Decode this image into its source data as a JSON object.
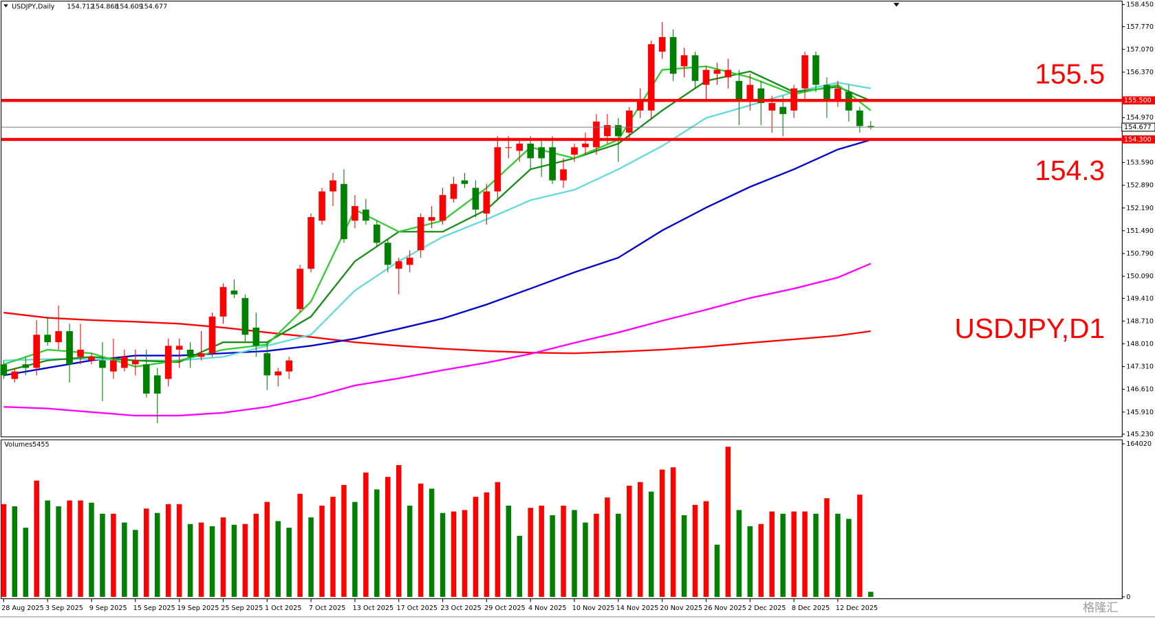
{
  "chart_data": [
    {
      "type": "candlestick",
      "title": "USDJPY,Daily",
      "categories": [
        "28 Aug 2025",
        null,
        null,
        null,
        "3 Sep 2025",
        null,
        null,
        null,
        "9 Sep 2025",
        null,
        null,
        null,
        "15 Sep 2025",
        null,
        null,
        null,
        "19 Sep 2025",
        null,
        null,
        null,
        "25 Sep 2025",
        null,
        null,
        null,
        "1 Oct 2025",
        null,
        null,
        null,
        "7 Oct 2025",
        null,
        null,
        null,
        "13 Oct 2025",
        null,
        null,
        null,
        "17 Oct 2025",
        null,
        null,
        null,
        "23 Oct 2025",
        null,
        null,
        null,
        "29 Oct 2025",
        null,
        null,
        null,
        "4 Nov 2025",
        null,
        null,
        null,
        "10 Nov 2025",
        null,
        null,
        null,
        "14 Nov 2025",
        null,
        null,
        null,
        "20 Nov 2025",
        null,
        null,
        null,
        "26 Nov 2025",
        null,
        null,
        null,
        "2 Dec 2025",
        null,
        null,
        null,
        "8 Dec 2025",
        null,
        null,
        null,
        "12 Dec 2025",
        null,
        null,
        null
      ],
      "open": [
        147.38,
        146.93,
        147.38,
        147.27,
        148.29,
        148.06,
        148.4,
        147.61,
        147.5,
        147.5,
        147.16,
        147.27,
        147.38,
        147.38,
        147.04,
        146.93,
        147.83,
        147.83,
        147.61,
        147.72,
        148.85,
        149.65,
        149.42,
        148.51,
        147.72,
        147.04,
        147.16,
        149.08,
        150.32,
        151.8,
        152.7,
        152.93,
        151.8,
        152.14,
        151.68,
        151.12,
        150.32,
        150.44,
        150.89,
        151.8,
        151.8,
        152.47,
        153.04,
        152.81,
        152.02,
        152.7,
        154.04,
        153.95,
        154.17,
        154.06,
        154.06,
        153.04,
        153.83,
        154.06,
        154.06,
        154.4,
        154.74,
        154.51,
        155.19,
        155.19,
        157.0,
        157.45,
        156.55,
        156.89,
        155.98,
        156.32,
        156.21,
        156.1,
        155.53,
        155.87,
        155.19,
        155.3,
        155.19,
        155.87,
        156.89,
        155.98,
        155.53,
        155.76,
        155.19,
        154.712
      ],
      "high": [
        147.5,
        147.27,
        147.61,
        148.74,
        148.85,
        149.19,
        148.63,
        148.63,
        147.72,
        148.06,
        148.17,
        147.83,
        147.83,
        147.83,
        147.27,
        148.17,
        148.17,
        148.06,
        148.4,
        148.97,
        149.87,
        149.99,
        149.53,
        148.97,
        148.06,
        147.27,
        147.61,
        150.44,
        152.02,
        152.81,
        153.27,
        153.38,
        152.59,
        152.47,
        151.8,
        151.23,
        150.66,
        150.89,
        152.02,
        152.25,
        152.81,
        153.15,
        153.27,
        153.04,
        152.93,
        154.4,
        154.4,
        154.29,
        154.4,
        154.29,
        154.4,
        153.72,
        154.17,
        154.51,
        155.08,
        155.08,
        154.96,
        155.3,
        155.87,
        157.34,
        157.91,
        157.68,
        157.12,
        157.0,
        156.55,
        156.66,
        156.78,
        156.44,
        156.32,
        156.1,
        155.64,
        155.64,
        155.98,
        157.0,
        157.0,
        156.21,
        156.1,
        155.98,
        155.3,
        154.868
      ],
      "low": [
        146.93,
        146.82,
        147.04,
        147.04,
        147.95,
        147.83,
        146.82,
        147.38,
        147.38,
        146.25,
        146.93,
        147.16,
        147.04,
        146.36,
        145.57,
        146.7,
        147.27,
        147.27,
        147.5,
        147.61,
        148.63,
        149.42,
        148.06,
        147.61,
        146.59,
        146.7,
        146.93,
        148.97,
        150.21,
        151.68,
        152.25,
        151.12,
        151.57,
        151.68,
        151.0,
        150.21,
        149.53,
        150.21,
        150.66,
        151.57,
        151.68,
        152.36,
        152.81,
        151.91,
        151.68,
        152.47,
        153.72,
        153.61,
        153.38,
        153.15,
        152.93,
        152.81,
        153.61,
        153.83,
        153.83,
        154.17,
        153.61,
        154.29,
        154.96,
        154.96,
        156.78,
        156.1,
        156.21,
        155.87,
        155.53,
        155.98,
        155.87,
        154.74,
        155.19,
        154.74,
        154.51,
        154.4,
        154.96,
        155.53,
        155.76,
        154.96,
        155.3,
        154.85,
        154.51,
        154.609
      ],
      "close": [
        147.04,
        147.16,
        147.27,
        148.29,
        148.06,
        148.4,
        147.38,
        147.83,
        147.61,
        147.27,
        147.5,
        147.61,
        147.5,
        146.48,
        146.48,
        147.95,
        147.95,
        147.61,
        147.72,
        148.85,
        149.76,
        149.53,
        148.29,
        147.95,
        147.04,
        147.16,
        147.5,
        150.32,
        151.91,
        152.7,
        153.04,
        151.23,
        152.25,
        151.8,
        151.12,
        150.44,
        150.55,
        150.66,
        151.91,
        151.91,
        152.59,
        152.93,
        152.93,
        152.14,
        152.7,
        154.06,
        154.06,
        154.17,
        153.72,
        153.72,
        153.04,
        153.38,
        154.06,
        154.17,
        154.85,
        154.74,
        154.4,
        155.19,
        155.53,
        157.23,
        157.45,
        156.32,
        156.89,
        156.1,
        156.44,
        156.44,
        156.44,
        155.53,
        155.98,
        155.42,
        155.42,
        155.08,
        155.87,
        156.89,
        155.98,
        155.53,
        155.87,
        155.19,
        154.71,
        154.677
      ],
      "up_color": "#ff0000",
      "down_color": "#008000",
      "ylim": [
        145.16,
        158.59
      ],
      "yticks": [
        {
          "value": 158.45,
          "label": "158.450"
        },
        {
          "value": 157.77,
          "label": "157.770"
        },
        {
          "value": 157.07,
          "label": "157.070"
        },
        {
          "value": 156.37,
          "label": "156.370"
        },
        {
          "value": 154.97,
          "label": "154.970"
        },
        {
          "value": 153.59,
          "label": "153.590"
        },
        {
          "value": 152.89,
          "label": "152.890"
        },
        {
          "value": 152.19,
          "label": "152.190"
        },
        {
          "value": 151.49,
          "label": "151.490"
        },
        {
          "value": 150.79,
          "label": "150.790"
        },
        {
          "value": 150.09,
          "label": "150.090"
        },
        {
          "value": 149.41,
          "label": "149.410"
        },
        {
          "value": 148.71,
          "label": "148.710"
        },
        {
          "value": 148.01,
          "label": "148.010"
        },
        {
          "value": 147.31,
          "label": "147.310"
        },
        {
          "value": 146.61,
          "label": "146.610"
        },
        {
          "value": 145.91,
          "label": "145.910"
        },
        {
          "value": 145.23,
          "label": "145.230"
        }
      ],
      "line_x": [
        0,
        4,
        8,
        12,
        16,
        20,
        24,
        28,
        32,
        36,
        40,
        44,
        48,
        52,
        56,
        60,
        64,
        68,
        72,
        76,
        79
      ],
      "lines": [
        {
          "color": "#ff0000",
          "values": [
            148.97,
            148.81,
            148.74,
            148.69,
            148.63,
            148.51,
            148.36,
            148.22,
            148.06,
            147.95,
            147.86,
            147.79,
            147.74,
            147.72,
            147.77,
            147.83,
            147.92,
            148.04,
            148.15,
            148.26,
            148.4
          ]
        },
        {
          "color": "#ff00ff",
          "values": [
            146.07,
            146.02,
            145.91,
            145.8,
            145.8,
            145.89,
            146.07,
            146.36,
            146.73,
            146.95,
            147.2,
            147.43,
            147.7,
            148.04,
            148.36,
            148.72,
            149.06,
            149.42,
            149.71,
            150.05,
            150.48
          ]
        },
        {
          "color": "#0000cd",
          "values": [
            147.04,
            147.27,
            147.5,
            147.65,
            147.65,
            147.72,
            147.79,
            147.95,
            148.17,
            148.47,
            148.79,
            149.22,
            149.71,
            150.21,
            150.66,
            151.5,
            152.2,
            152.84,
            153.38,
            153.99,
            154.29
          ]
        },
        {
          "color": "#66d9d9",
          "values": [
            147.5,
            147.54,
            147.54,
            147.5,
            147.5,
            147.61,
            147.95,
            148.29,
            149.65,
            150.55,
            151.3,
            151.84,
            152.43,
            152.75,
            153.38,
            154.1,
            154.96,
            155.35,
            155.76,
            156.05,
            155.87
          ]
        },
        {
          "color": "#1a8c1a",
          "values": [
            147.16,
            147.5,
            147.61,
            147.5,
            147.45,
            148.06,
            148.06,
            148.85,
            150.55,
            151.46,
            151.46,
            152.14,
            153.38,
            153.72,
            154.17,
            155.19,
            156.1,
            156.39,
            155.76,
            155.92,
            155.49
          ]
        },
        {
          "color": "#33cc33",
          "values": [
            147.38,
            147.83,
            147.72,
            147.31,
            147.5,
            147.83,
            147.99,
            149.31,
            152.14,
            151.46,
            151.8,
            152.81,
            154.06,
            153.72,
            154.29,
            156.44,
            156.55,
            156.21,
            155.69,
            155.98,
            155.19
          ]
        }
      ],
      "levels": [
        {
          "value": 155.5,
          "tag": "155.500",
          "color": "#ff0000"
        },
        {
          "value": 154.3,
          "tag": "154.300",
          "color": "#ff0000"
        }
      ],
      "annotation": "USDJPY,D1",
      "watermark": "格隆汇"
    },
    {
      "type": "bar",
      "title": "Volumes",
      "values": [
        99410,
        97050,
        74170,
        124660,
        103360,
        97050,
        103360,
        103360,
        100990,
        89160,
        89160,
        79690,
        71800,
        94680,
        89950,
        99410,
        99410,
        78110,
        79690,
        75740,
        85210,
        77320,
        78110,
        89160,
        101780,
        81270,
        74170,
        110460,
        85210,
        97840,
        107300,
        119930,
        101780,
        133340,
        115190,
        128610,
        141230,
        97840,
        121510,
        115980,
        89950,
        91520,
        93100,
        107300,
        112040,
        123080,
        97840,
        65490,
        95470,
        97840,
        87580,
        97840,
        93100,
        79690,
        89160,
        106520,
        89160,
        119140,
        123080,
        112830,
        136500,
        138860,
        87580,
        98630,
        102570,
        56020,
        160960,
        93100,
        75740,
        78110,
        91520,
        89160,
        91520,
        91520,
        89160,
        105730,
        89160,
        83630,
        109670,
        5455
      ],
      "up_color": "#ff0000",
      "down_color": "#008000",
      "ylim": [
        0,
        168000
      ],
      "yticks": [
        0,
        164020
      ]
    }
  ]
}
